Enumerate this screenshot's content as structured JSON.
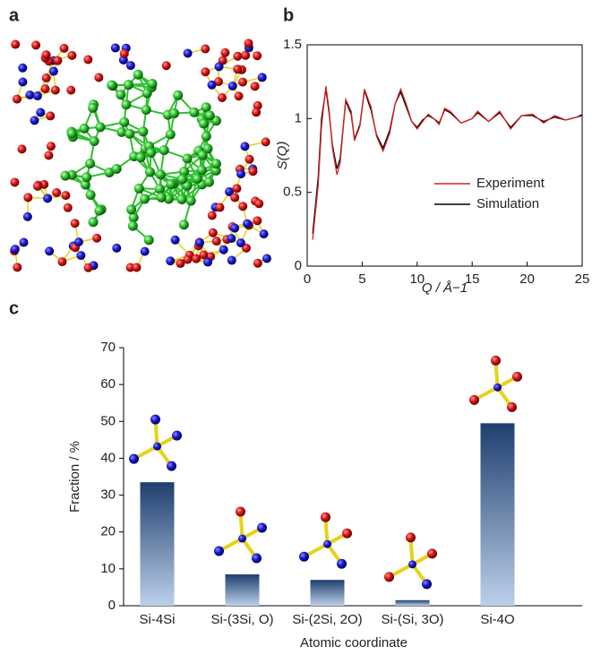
{
  "chart_data": [
    {
      "type": "image",
      "panel_label": "a"
    },
    {
      "type": "line",
      "panel_label": "b",
      "xlabel": "Q / Å−1",
      "ylabel": "S(Q)",
      "x": [
        0.5,
        1,
        1.3,
        1.7,
        2,
        2.3,
        2.7,
        3,
        3.5,
        4,
        4.3,
        4.8,
        5.2,
        5.8,
        6.3,
        6.9,
        7.5,
        8,
        8.5,
        9,
        9.5,
        10,
        10.5,
        11,
        11.5,
        12,
        12.5,
        13,
        14,
        15,
        15.5,
        16.5,
        17.5,
        18.5,
        19.5,
        20.5,
        21.5,
        22.5,
        23.5,
        24.5,
        25
      ],
      "series": [
        {
          "name": "Experiment",
          "color": "#d62020",
          "values": [
            0.18,
            0.55,
            0.95,
            1.22,
            1.05,
            0.8,
            0.62,
            0.7,
            1.13,
            1.05,
            0.85,
            0.95,
            1.2,
            1.08,
            0.88,
            0.78,
            0.9,
            1.1,
            1.2,
            1.1,
            0.98,
            0.93,
            0.98,
            1.03,
            1.0,
            0.96,
            1.07,
            1.05,
            0.97,
            1.0,
            1.05,
            0.98,
            1.05,
            0.93,
            1.02,
            1.03,
            0.97,
            1.02,
            0.99,
            1.01,
            1.03
          ]
        },
        {
          "name": "Simulation",
          "color": "#000000",
          "values": [
            0.22,
            0.6,
            1.0,
            1.2,
            1.03,
            0.82,
            0.66,
            0.73,
            1.12,
            1.03,
            0.86,
            0.96,
            1.19,
            1.06,
            0.89,
            0.8,
            0.92,
            1.1,
            1.18,
            1.08,
            0.98,
            0.94,
            0.99,
            1.02,
            1.0,
            0.97,
            1.06,
            1.04,
            0.97,
            1.0,
            1.04,
            0.98,
            1.04,
            0.94,
            1.02,
            1.02,
            0.98,
            1.01,
            0.99,
            1.01,
            1.02
          ]
        }
      ],
      "xlim": [
        0,
        25
      ],
      "xticks": [
        0,
        5,
        10,
        15,
        20,
        25
      ],
      "ylim": [
        0,
        1.5
      ],
      "yticks": [
        0,
        0.5,
        1,
        1.5
      ],
      "legend": "lower right"
    },
    {
      "type": "bar",
      "panel_label": "c",
      "xlabel": "Atomic coordinate",
      "ylabel": "Fraction / %",
      "categories": [
        "Si-4Si",
        "Si-(3Si, O)",
        "Si-(2Si, 2O)",
        "Si-(Si, 3O)",
        "Si-4O"
      ],
      "values": [
        33.5,
        8.5,
        7,
        1.5,
        49.5
      ],
      "color": "#1f3f6e",
      "color_light": "#bcd0ea",
      "ylim": [
        0,
        70
      ],
      "yticks": [
        0,
        10,
        20,
        30,
        40,
        50,
        60,
        70
      ]
    }
  ]
}
